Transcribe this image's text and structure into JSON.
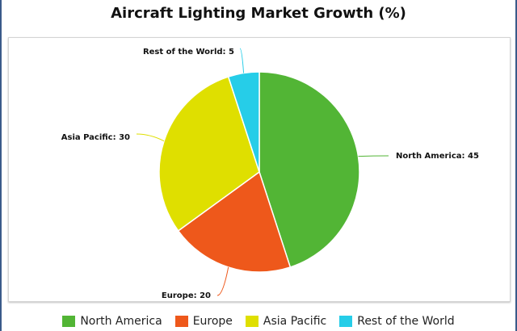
{
  "chart_data": {
    "type": "pie",
    "title": "Aircraft Lighting Market Growth (%)",
    "categories": [
      "North America",
      "Europe",
      "Asia Pacific",
      "Rest of the World"
    ],
    "values": [
      45,
      20,
      30,
      5
    ],
    "colors": [
      "#52b535",
      "#ee581b",
      "#dfdf00",
      "#26cde8"
    ],
    "data_labels": [
      "North America: 45",
      "Europe: 20",
      "Asia Pacific: 30",
      "Rest of the World: 5"
    ],
    "legend": {
      "placement": "bottom",
      "entries": [
        "North America",
        "Europe",
        "Asia Pacific",
        "Rest of the World"
      ]
    }
  }
}
